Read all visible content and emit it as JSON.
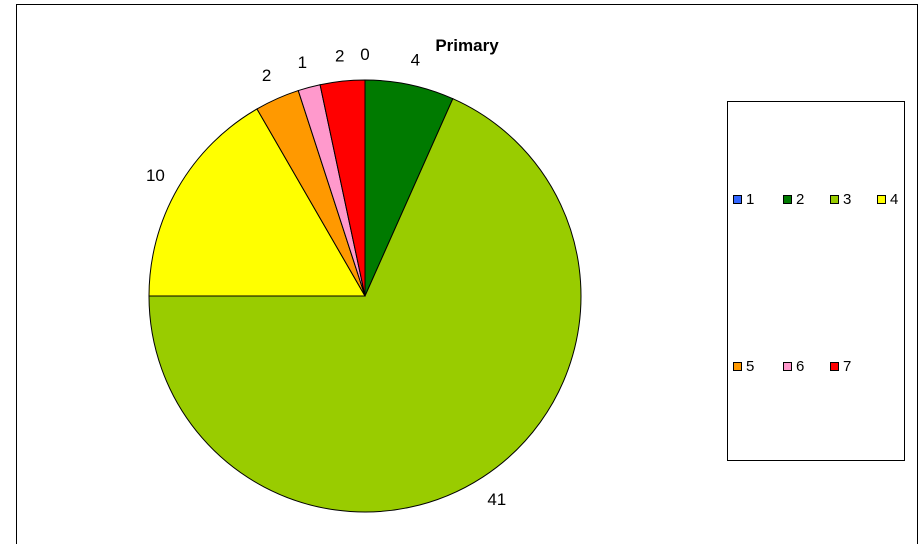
{
  "chart_data": {
    "type": "pie",
    "title": "Primary",
    "categories": [
      "1",
      "2",
      "3",
      "4",
      "5",
      "6",
      "7"
    ],
    "values": [
      0,
      4,
      41,
      10,
      2,
      1,
      2
    ],
    "colors": [
      "#3366ff",
      "#007a00",
      "#99cc00",
      "#ffff00",
      "#ff9900",
      "#ff99cc",
      "#ff0000"
    ],
    "legend": {
      "placement": "right",
      "rows": [
        [
          "1",
          "2",
          "3",
          "4"
        ],
        [
          "5",
          "6",
          "7"
        ]
      ]
    }
  }
}
